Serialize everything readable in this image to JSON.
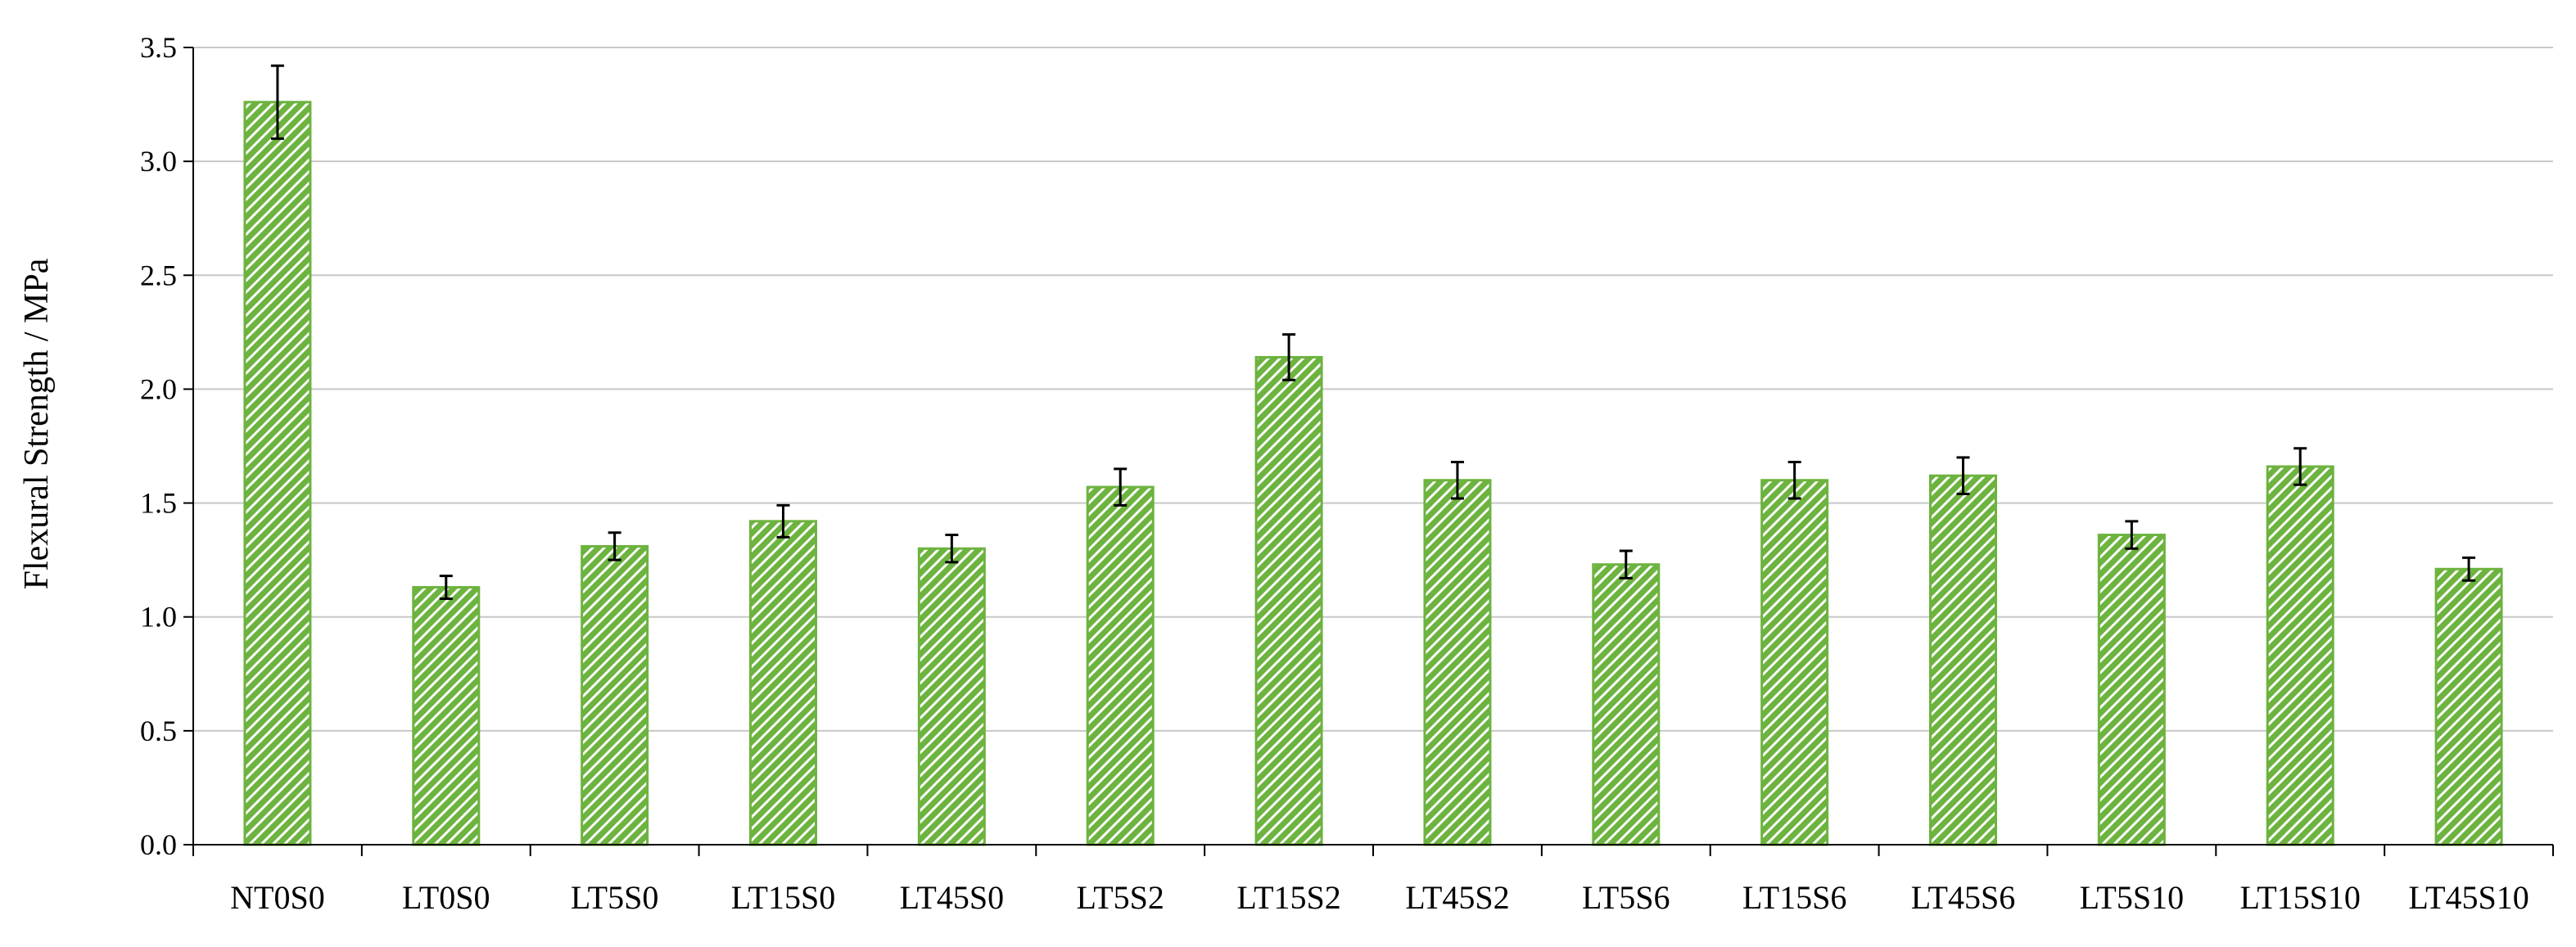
{
  "chart_data": {
    "type": "bar",
    "title": "",
    "xlabel": "",
    "ylabel": "Flexural Strength / MPa",
    "ylim": [
      0,
      3.5
    ],
    "yticks": [
      "0.0",
      "0.5",
      "1.0",
      "1.5",
      "2.0",
      "2.5",
      "3.0",
      "3.5"
    ],
    "grid": true,
    "bar_color": "#6db33f",
    "bar_hatch": "diagonal",
    "categories": [
      "NT0S0",
      "LT0S0",
      "LT5S0",
      "LT15S0",
      "LT45S0",
      "LT5S2",
      "LT15S2",
      "LT45S2",
      "LT5S6",
      "LT15S6",
      "LT45S6",
      "LT5S10",
      "LT15S10",
      "LT45S10"
    ],
    "values": [
      3.26,
      1.13,
      1.31,
      1.42,
      1.3,
      1.57,
      2.14,
      1.6,
      1.23,
      1.6,
      1.62,
      1.36,
      1.66,
      1.21
    ],
    "errors": [
      0.16,
      0.05,
      0.06,
      0.07,
      0.06,
      0.08,
      0.1,
      0.08,
      0.06,
      0.08,
      0.08,
      0.06,
      0.08,
      0.05
    ]
  }
}
